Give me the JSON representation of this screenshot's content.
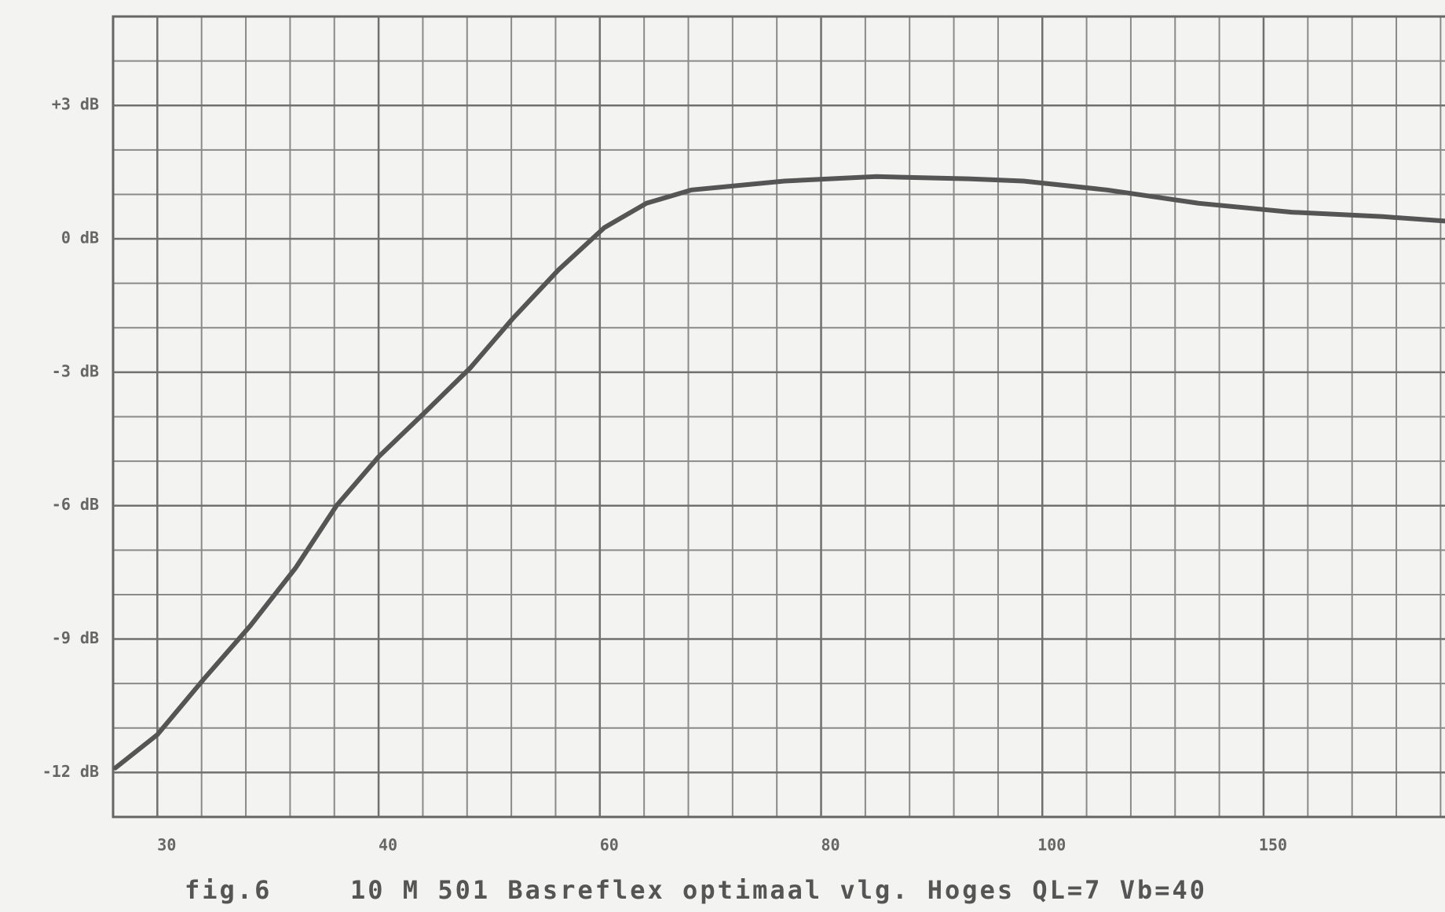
{
  "chart_data": {
    "type": "line",
    "figure_label": "fig.6",
    "title": "10 M 501 Basreflex optimaal vlg. Hoges QL=7 Vb=40",
    "xlim": [
      28,
      191
    ],
    "xticks": [
      30,
      40,
      60,
      80,
      100,
      150
    ],
    "ylim": [
      -13,
      5
    ],
    "yticks": [
      {
        "value": 3,
        "label": "+3 dB"
      },
      {
        "value": 0,
        "label": "0 dB"
      },
      {
        "value": -3,
        "label": "-3 dB"
      },
      {
        "value": -6,
        "label": "-6 dB"
      },
      {
        "value": -9,
        "label": "-9 dB"
      },
      {
        "value": -12,
        "label": "-12 dB"
      }
    ],
    "grid": true,
    "series": [
      {
        "color": "#555555",
        "x": [
          28.1,
          30,
          32.1,
          34.2,
          36.25,
          38.1,
          40,
          44.2,
          48.3,
          52.1,
          56.25,
          60.4,
          64.2,
          68.3,
          76.7,
          85,
          93.3,
          98.3,
          114.6,
          135.4,
          156.3,
          177,
          191
        ],
        "values": [
          -11.9,
          -11.15,
          -9.9,
          -8.7,
          -7.4,
          -6.0,
          -4.9,
          -3.9,
          -2.9,
          -1.8,
          -0.7,
          0.25,
          0.8,
          1.1,
          1.3,
          1.4,
          1.35,
          1.3,
          1.1,
          0.8,
          0.6,
          0.5,
          0.4
        ]
      }
    ]
  }
}
